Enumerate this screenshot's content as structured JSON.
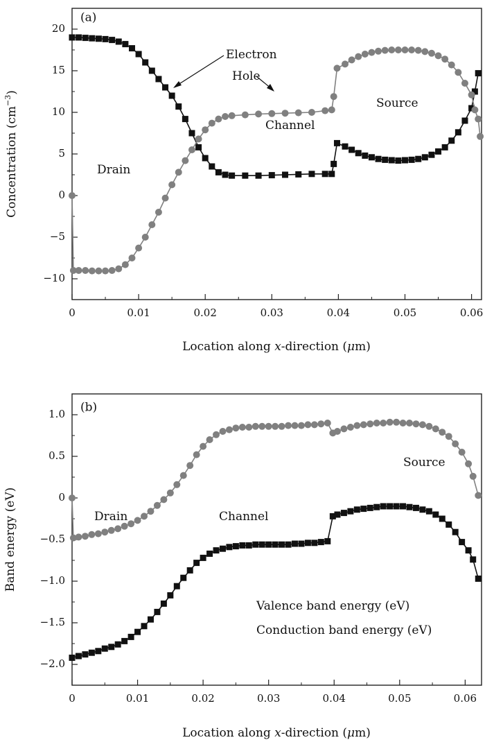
{
  "chart_data": [
    {
      "type": "line",
      "panel_label": "(a)",
      "xlabel_pre": "Location along ",
      "xlabel_var": "x",
      "xlabel_post": "-direction (",
      "xlabel_unit_sym": "μ",
      "xlabel_unit": "m)",
      "ylabel_pre": "Concentration (cm",
      "ylabel_sup": "−3",
      "ylabel_post": ")",
      "xlim": [
        0,
        0.0615
      ],
      "ylim": [
        -12.5,
        22.5
      ],
      "xticks": [
        "0",
        "0.01",
        "0.02",
        "0.03",
        "0.04",
        "0.05",
        "0.06"
      ],
      "yticks": [
        "−10",
        "−5",
        "0",
        "5",
        "10",
        "15",
        "20"
      ],
      "region_labels": [
        "Drain",
        "Channel",
        "Source"
      ],
      "series": [
        {
          "name": "Electron",
          "marker": "square",
          "color": "#111111",
          "points": [
            [
              0,
              19
            ],
            [
              0.001,
              19
            ],
            [
              0.002,
              18.95
            ],
            [
              0.003,
              18.9
            ],
            [
              0.004,
              18.85
            ],
            [
              0.005,
              18.8
            ],
            [
              0.006,
              18.7
            ],
            [
              0.007,
              18.5
            ],
            [
              0.008,
              18.2
            ],
            [
              0.009,
              17.7
            ],
            [
              0.01,
              17
            ],
            [
              0.011,
              16
            ],
            [
              0.012,
              15
            ],
            [
              0.013,
              14
            ],
            [
              0.014,
              13
            ],
            [
              0.015,
              12
            ],
            [
              0.016,
              10.7
            ],
            [
              0.017,
              9.2
            ],
            [
              0.018,
              7.5
            ],
            [
              0.019,
              5.8
            ],
            [
              0.02,
              4.5
            ],
            [
              0.021,
              3.5
            ],
            [
              0.022,
              2.8
            ],
            [
              0.023,
              2.5
            ],
            [
              0.024,
              2.4
            ],
            [
              0.026,
              2.4
            ],
            [
              0.028,
              2.4
            ],
            [
              0.03,
              2.45
            ],
            [
              0.032,
              2.5
            ],
            [
              0.034,
              2.55
            ],
            [
              0.036,
              2.6
            ],
            [
              0.038,
              2.6
            ],
            [
              0.039,
              2.6
            ],
            [
              0.0393,
              3.8
            ],
            [
              0.0398,
              6.3
            ],
            [
              0.041,
              5.9
            ],
            [
              0.042,
              5.5
            ],
            [
              0.043,
              5.1
            ],
            [
              0.044,
              4.8
            ],
            [
              0.045,
              4.6
            ],
            [
              0.046,
              4.4
            ],
            [
              0.047,
              4.3
            ],
            [
              0.048,
              4.25
            ],
            [
              0.049,
              4.2
            ],
            [
              0.05,
              4.25
            ],
            [
              0.051,
              4.3
            ],
            [
              0.052,
              4.4
            ],
            [
              0.053,
              4.6
            ],
            [
              0.054,
              4.9
            ],
            [
              0.055,
              5.3
            ],
            [
              0.056,
              5.8
            ],
            [
              0.057,
              6.6
            ],
            [
              0.058,
              7.6
            ],
            [
              0.059,
              9
            ],
            [
              0.06,
              10.5
            ],
            [
              0.0605,
              12.5
            ],
            [
              0.061,
              14.7
            ]
          ]
        },
        {
          "name": "Hole",
          "marker": "circle",
          "color": "#808080",
          "points": [
            [
              0,
              0
            ],
            [
              0.0002,
              -9
            ],
            [
              0.001,
              -9
            ],
            [
              0.002,
              -9
            ],
            [
              0.003,
              -9.05
            ],
            [
              0.004,
              -9.05
            ],
            [
              0.005,
              -9.05
            ],
            [
              0.006,
              -9
            ],
            [
              0.007,
              -8.8
            ],
            [
              0.008,
              -8.3
            ],
            [
              0.009,
              -7.5
            ],
            [
              0.01,
              -6.3
            ],
            [
              0.011,
              -5
            ],
            [
              0.012,
              -3.5
            ],
            [
              0.013,
              -2
            ],
            [
              0.014,
              -0.3
            ],
            [
              0.015,
              1.3
            ],
            [
              0.016,
              2.8
            ],
            [
              0.017,
              4.2
            ],
            [
              0.018,
              5.5
            ],
            [
              0.019,
              6.8
            ],
            [
              0.02,
              7.9
            ],
            [
              0.021,
              8.7
            ],
            [
              0.022,
              9.2
            ],
            [
              0.023,
              9.5
            ],
            [
              0.024,
              9.6
            ],
            [
              0.026,
              9.7
            ],
            [
              0.028,
              9.8
            ],
            [
              0.03,
              9.85
            ],
            [
              0.032,
              9.9
            ],
            [
              0.034,
              9.95
            ],
            [
              0.036,
              10
            ],
            [
              0.038,
              10.2
            ],
            [
              0.039,
              10.3
            ],
            [
              0.0393,
              11.9
            ],
            [
              0.0398,
              15.3
            ],
            [
              0.041,
              15.8
            ],
            [
              0.042,
              16.3
            ],
            [
              0.043,
              16.7
            ],
            [
              0.044,
              17
            ],
            [
              0.045,
              17.2
            ],
            [
              0.046,
              17.35
            ],
            [
              0.047,
              17.45
            ],
            [
              0.048,
              17.5
            ],
            [
              0.049,
              17.5
            ],
            [
              0.05,
              17.5
            ],
            [
              0.051,
              17.5
            ],
            [
              0.052,
              17.45
            ],
            [
              0.053,
              17.3
            ],
            [
              0.054,
              17.1
            ],
            [
              0.055,
              16.8
            ],
            [
              0.056,
              16.4
            ],
            [
              0.057,
              15.7
            ],
            [
              0.058,
              14.8
            ],
            [
              0.059,
              13.5
            ],
            [
              0.06,
              12.1
            ],
            [
              0.0605,
              10.3
            ],
            [
              0.061,
              9.2
            ],
            [
              0.0613,
              7.1
            ]
          ]
        }
      ]
    },
    {
      "type": "line",
      "panel_label": "(b)",
      "xlabel_pre": "Location along ",
      "xlabel_var": "x",
      "xlabel_post": "-direction (",
      "xlabel_unit_sym": "μ",
      "xlabel_unit": "m)",
      "ylabel": "Band energy (eV)",
      "xlim": [
        0,
        0.0625
      ],
      "ylim": [
        -2.25,
        1.25
      ],
      "xticks": [
        "0",
        "0.01",
        "0.02",
        "0.03",
        "0.04",
        "0.05",
        "0.06"
      ],
      "yticks": [
        "−2.0",
        "−1.5",
        "−1.0",
        "−0.5",
        "0",
        "0.5",
        "1.0"
      ],
      "region_labels": [
        "Drain",
        "Channel",
        "Source"
      ],
      "series": [
        {
          "name": "Valence band energy (eV)",
          "marker": "square",
          "color": "#111111",
          "points": [
            [
              0,
              -1.92
            ],
            [
              0.001,
              -1.9
            ],
            [
              0.002,
              -1.88
            ],
            [
              0.003,
              -1.86
            ],
            [
              0.004,
              -1.84
            ],
            [
              0.005,
              -1.81
            ],
            [
              0.006,
              -1.79
            ],
            [
              0.007,
              -1.76
            ],
            [
              0.008,
              -1.72
            ],
            [
              0.009,
              -1.67
            ],
            [
              0.01,
              -1.61
            ],
            [
              0.011,
              -1.54
            ],
            [
              0.012,
              -1.46
            ],
            [
              0.013,
              -1.37
            ],
            [
              0.014,
              -1.27
            ],
            [
              0.015,
              -1.17
            ],
            [
              0.016,
              -1.06
            ],
            [
              0.017,
              -0.96
            ],
            [
              0.018,
              -0.87
            ],
            [
              0.019,
              -0.78
            ],
            [
              0.02,
              -0.72
            ],
            [
              0.021,
              -0.67
            ],
            [
              0.022,
              -0.63
            ],
            [
              0.023,
              -0.61
            ],
            [
              0.024,
              -0.59
            ],
            [
              0.025,
              -0.58
            ],
            [
              0.026,
              -0.57
            ],
            [
              0.027,
              -0.57
            ],
            [
              0.028,
              -0.56
            ],
            [
              0.029,
              -0.56
            ],
            [
              0.03,
              -0.56
            ],
            [
              0.031,
              -0.56
            ],
            [
              0.032,
              -0.56
            ],
            [
              0.033,
              -0.56
            ],
            [
              0.034,
              -0.55
            ],
            [
              0.035,
              -0.55
            ],
            [
              0.036,
              -0.54
            ],
            [
              0.037,
              -0.54
            ],
            [
              0.038,
              -0.53
            ],
            [
              0.039,
              -0.52
            ],
            [
              0.0398,
              -0.22
            ],
            [
              0.0405,
              -0.2
            ],
            [
              0.0415,
              -0.18
            ],
            [
              0.0425,
              -0.16
            ],
            [
              0.0435,
              -0.14
            ],
            [
              0.0445,
              -0.13
            ],
            [
              0.0455,
              -0.12
            ],
            [
              0.0465,
              -0.11
            ],
            [
              0.0475,
              -0.1
            ],
            [
              0.0485,
              -0.1
            ],
            [
              0.0495,
              -0.1
            ],
            [
              0.0505,
              -0.1
            ],
            [
              0.0515,
              -0.11
            ],
            [
              0.0525,
              -0.12
            ],
            [
              0.0535,
              -0.14
            ],
            [
              0.0545,
              -0.16
            ],
            [
              0.0555,
              -0.2
            ],
            [
              0.0565,
              -0.25
            ],
            [
              0.0575,
              -0.32
            ],
            [
              0.0585,
              -0.41
            ],
            [
              0.0595,
              -0.53
            ],
            [
              0.0605,
              -0.63
            ],
            [
              0.0612,
              -0.74
            ],
            [
              0.062,
              -0.97
            ]
          ]
        },
        {
          "name": "Conduction band energy (eV)",
          "marker": "circle",
          "color": "#808080",
          "points": [
            [
              0,
              0
            ],
            [
              0.0002,
              -0.48
            ],
            [
              0.001,
              -0.47
            ],
            [
              0.002,
              -0.46
            ],
            [
              0.003,
              -0.44
            ],
            [
              0.004,
              -0.43
            ],
            [
              0.005,
              -0.41
            ],
            [
              0.006,
              -0.39
            ],
            [
              0.007,
              -0.37
            ],
            [
              0.008,
              -0.34
            ],
            [
              0.009,
              -0.31
            ],
            [
              0.01,
              -0.27
            ],
            [
              0.011,
              -0.22
            ],
            [
              0.012,
              -0.16
            ],
            [
              0.013,
              -0.09
            ],
            [
              0.014,
              -0.02
            ],
            [
              0.015,
              0.06
            ],
            [
              0.016,
              0.16
            ],
            [
              0.017,
              0.27
            ],
            [
              0.018,
              0.39
            ],
            [
              0.019,
              0.52
            ],
            [
              0.02,
              0.62
            ],
            [
              0.021,
              0.7
            ],
            [
              0.022,
              0.76
            ],
            [
              0.023,
              0.8
            ],
            [
              0.024,
              0.82
            ],
            [
              0.025,
              0.84
            ],
            [
              0.026,
              0.85
            ],
            [
              0.027,
              0.85
            ],
            [
              0.028,
              0.86
            ],
            [
              0.029,
              0.86
            ],
            [
              0.03,
              0.86
            ],
            [
              0.031,
              0.86
            ],
            [
              0.032,
              0.86
            ],
            [
              0.033,
              0.87
            ],
            [
              0.034,
              0.87
            ],
            [
              0.035,
              0.87
            ],
            [
              0.036,
              0.88
            ],
            [
              0.037,
              0.88
            ],
            [
              0.038,
              0.89
            ],
            [
              0.039,
              0.9
            ],
            [
              0.0398,
              0.78
            ],
            [
              0.0405,
              0.8
            ],
            [
              0.0415,
              0.83
            ],
            [
              0.0425,
              0.85
            ],
            [
              0.0435,
              0.87
            ],
            [
              0.0445,
              0.88
            ],
            [
              0.0455,
              0.89
            ],
            [
              0.0465,
              0.9
            ],
            [
              0.0475,
              0.9
            ],
            [
              0.0485,
              0.91
            ],
            [
              0.0495,
              0.91
            ],
            [
              0.0505,
              0.9
            ],
            [
              0.0515,
              0.9
            ],
            [
              0.0525,
              0.89
            ],
            [
              0.0535,
              0.88
            ],
            [
              0.0545,
              0.86
            ],
            [
              0.0555,
              0.83
            ],
            [
              0.0565,
              0.79
            ],
            [
              0.0575,
              0.74
            ],
            [
              0.0585,
              0.65
            ],
            [
              0.0595,
              0.55
            ],
            [
              0.0605,
              0.41
            ],
            [
              0.0612,
              0.26
            ],
            [
              0.062,
              0.03
            ]
          ]
        }
      ]
    }
  ]
}
